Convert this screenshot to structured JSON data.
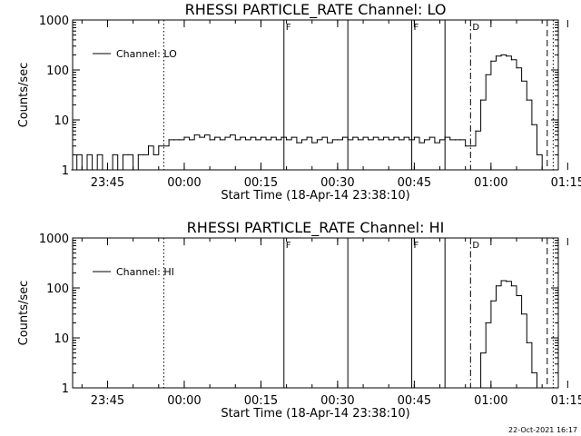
{
  "footer": {
    "timestamp": "22-Oct-2021 16:17"
  },
  "chart_data": [
    {
      "type": "line",
      "title": "RHESSI PARTICLE_RATE Channel: LO",
      "xlabel": "Start Time (18-Apr-14 23:38:10)",
      "ylabel": "Counts/sec",
      "yscale": "log",
      "ylim": [
        1,
        1000
      ],
      "yticks": [
        "1",
        "10",
        "100",
        "1000"
      ],
      "xticks": [
        "23:45",
        "00:00",
        "00:15",
        "00:30",
        "00:45",
        "01:00",
        "01:15"
      ],
      "legend": {
        "entry": "Channel: LO",
        "position": "top-left"
      },
      "color": "#000000",
      "markers": [
        {
          "time": "23:56:00",
          "style": "dotted",
          "label": ""
        },
        {
          "time": "00:19:30",
          "style": "solid",
          "label": "F"
        },
        {
          "time": "00:32:00",
          "style": "solid",
          "label": ""
        },
        {
          "time": "00:44:30",
          "style": "solid",
          "label": "F"
        },
        {
          "time": "00:51:00",
          "style": "solid",
          "label": ""
        },
        {
          "time": "00:56:00",
          "style": "dashdot",
          "label": "D"
        },
        {
          "time": "01:11:00",
          "style": "dashed",
          "label": ""
        },
        {
          "time": "01:12:10",
          "style": "dotted",
          "label": ""
        }
      ],
      "series": [
        {
          "values": [
            [
              "23:38",
              1
            ],
            [
              "23:39",
              2
            ],
            [
              "23:40",
              1
            ],
            [
              "23:41",
              2
            ],
            [
              "23:42",
              1
            ],
            [
              "23:43",
              2
            ],
            [
              "23:44",
              1
            ],
            [
              "23:45",
              1
            ],
            [
              "23:46",
              2
            ],
            [
              "23:47",
              1
            ],
            [
              "23:48",
              2
            ],
            [
              "23:49",
              2
            ],
            [
              "23:50",
              1
            ],
            [
              "23:51",
              2
            ],
            [
              "23:52",
              2
            ],
            [
              "23:53",
              3
            ],
            [
              "23:54",
              2
            ],
            [
              "23:55",
              3
            ],
            [
              "23:56",
              3
            ],
            [
              "23:57",
              4
            ],
            [
              "23:58",
              4
            ],
            [
              "23:59",
              4
            ],
            [
              "00:00",
              4.5
            ],
            [
              "00:01",
              4
            ],
            [
              "00:02",
              5
            ],
            [
              "00:03",
              4.5
            ],
            [
              "00:04",
              5
            ],
            [
              "00:05",
              4
            ],
            [
              "00:06",
              4.5
            ],
            [
              "00:07",
              4
            ],
            [
              "00:08",
              4.5
            ],
            [
              "00:09",
              5
            ],
            [
              "00:10",
              4
            ],
            [
              "00:11",
              4.5
            ],
            [
              "00:12",
              4
            ],
            [
              "00:13",
              4.5
            ],
            [
              "00:14",
              4
            ],
            [
              "00:15",
              4.5
            ],
            [
              "00:16",
              4
            ],
            [
              "00:17",
              4.5
            ],
            [
              "00:18",
              4
            ],
            [
              "00:19",
              4.5
            ],
            [
              "00:20",
              4
            ],
            [
              "00:21",
              4.5
            ],
            [
              "00:22",
              3.5
            ],
            [
              "00:23",
              4
            ],
            [
              "00:24",
              4.5
            ],
            [
              "00:25",
              3.5
            ],
            [
              "00:26",
              4
            ],
            [
              "00:27",
              4.5
            ],
            [
              "00:28",
              3.5
            ],
            [
              "00:29",
              4
            ],
            [
              "00:30",
              4
            ],
            [
              "00:31",
              4.5
            ],
            [
              "00:32",
              4
            ],
            [
              "00:33",
              4.5
            ],
            [
              "00:34",
              4
            ],
            [
              "00:35",
              4.5
            ],
            [
              "00:36",
              4
            ],
            [
              "00:37",
              4.5
            ],
            [
              "00:38",
              4
            ],
            [
              "00:39",
              4.5
            ],
            [
              "00:40",
              4
            ],
            [
              "00:41",
              4.5
            ],
            [
              "00:42",
              4
            ],
            [
              "00:43",
              4.5
            ],
            [
              "00:44",
              4
            ],
            [
              "00:45",
              4.5
            ],
            [
              "00:46",
              3.5
            ],
            [
              "00:47",
              4
            ],
            [
              "00:48",
              4.5
            ],
            [
              "00:49",
              3.5
            ],
            [
              "00:50",
              4
            ],
            [
              "00:51",
              4.5
            ],
            [
              "00:52",
              4
            ],
            [
              "00:53",
              4
            ],
            [
              "00:54",
              4
            ],
            [
              "00:55",
              3
            ],
            [
              "00:56",
              3
            ],
            [
              "00:57",
              6
            ],
            [
              "00:58",
              25
            ],
            [
              "00:59",
              80
            ],
            [
              "01:00",
              150
            ],
            [
              "01:01",
              190
            ],
            [
              "01:02",
              200
            ],
            [
              "01:03",
              190
            ],
            [
              "01:04",
              160
            ],
            [
              "01:05",
              110
            ],
            [
              "01:06",
              60
            ],
            [
              "01:07",
              25
            ],
            [
              "01:08",
              8
            ],
            [
              "01:09",
              2
            ],
            [
              "01:10",
              1
            ]
          ]
        }
      ]
    },
    {
      "type": "line",
      "title": "RHESSI PARTICLE_RATE Channel: HI",
      "xlabel": "Start Time (18-Apr-14 23:38:10)",
      "ylabel": "Counts/sec",
      "yscale": "log",
      "ylim": [
        1,
        1000
      ],
      "yticks": [
        "1",
        "10",
        "100",
        "1000"
      ],
      "xticks": [
        "23:45",
        "00:00",
        "00:15",
        "00:30",
        "00:45",
        "01:00",
        "01:15"
      ],
      "legend": {
        "entry": "Channel: HI",
        "position": "top-left"
      },
      "color": "#000000",
      "markers": [
        {
          "time": "23:56:00",
          "style": "dotted",
          "label": ""
        },
        {
          "time": "00:19:30",
          "style": "solid",
          "label": "F"
        },
        {
          "time": "00:32:00",
          "style": "solid",
          "label": ""
        },
        {
          "time": "00:44:30",
          "style": "solid",
          "label": "F"
        },
        {
          "time": "00:51:00",
          "style": "solid",
          "label": ""
        },
        {
          "time": "00:56:00",
          "style": "dashdot",
          "label": "D"
        },
        {
          "time": "01:11:00",
          "style": "dashed",
          "label": ""
        },
        {
          "time": "01:12:10",
          "style": "dotted",
          "label": ""
        }
      ],
      "series": [
        {
          "values": [
            [
              "00:57",
              1
            ],
            [
              "00:58",
              5
            ],
            [
              "00:59",
              20
            ],
            [
              "01:00",
              55
            ],
            [
              "01:01",
              110
            ],
            [
              "01:02",
              140
            ],
            [
              "01:03",
              135
            ],
            [
              "01:04",
              110
            ],
            [
              "01:05",
              70
            ],
            [
              "01:06",
              30
            ],
            [
              "01:07",
              8
            ],
            [
              "01:08",
              2
            ],
            [
              "01:09",
              1
            ]
          ]
        }
      ]
    }
  ]
}
